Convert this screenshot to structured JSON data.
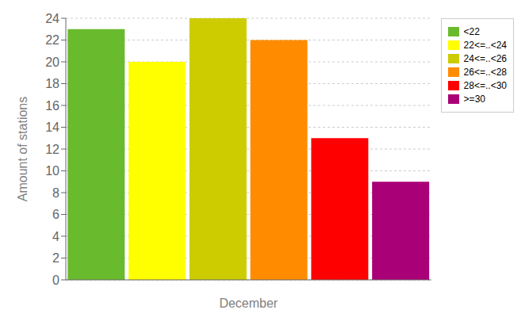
{
  "chart_data": {
    "type": "bar",
    "categories": [
      "<22",
      "22<=..<24",
      "24<=..<26",
      "26<=..<28",
      "28<=..<30",
      ">=30"
    ],
    "values": [
      23,
      20,
      24,
      22,
      13,
      9
    ],
    "colors": [
      "#6aba2e",
      "#ffff00",
      "#cccc00",
      "#ff8c00",
      "#ff0000",
      "#aa0077"
    ],
    "xlabel": "December",
    "ylabel": "Amount of stations",
    "ylim": [
      0,
      24
    ],
    "yticks": [
      0,
      2,
      4,
      6,
      8,
      10,
      12,
      14,
      16,
      18,
      20,
      22,
      24
    ],
    "grid": true,
    "legend": "right",
    "tick_labels": "y"
  }
}
